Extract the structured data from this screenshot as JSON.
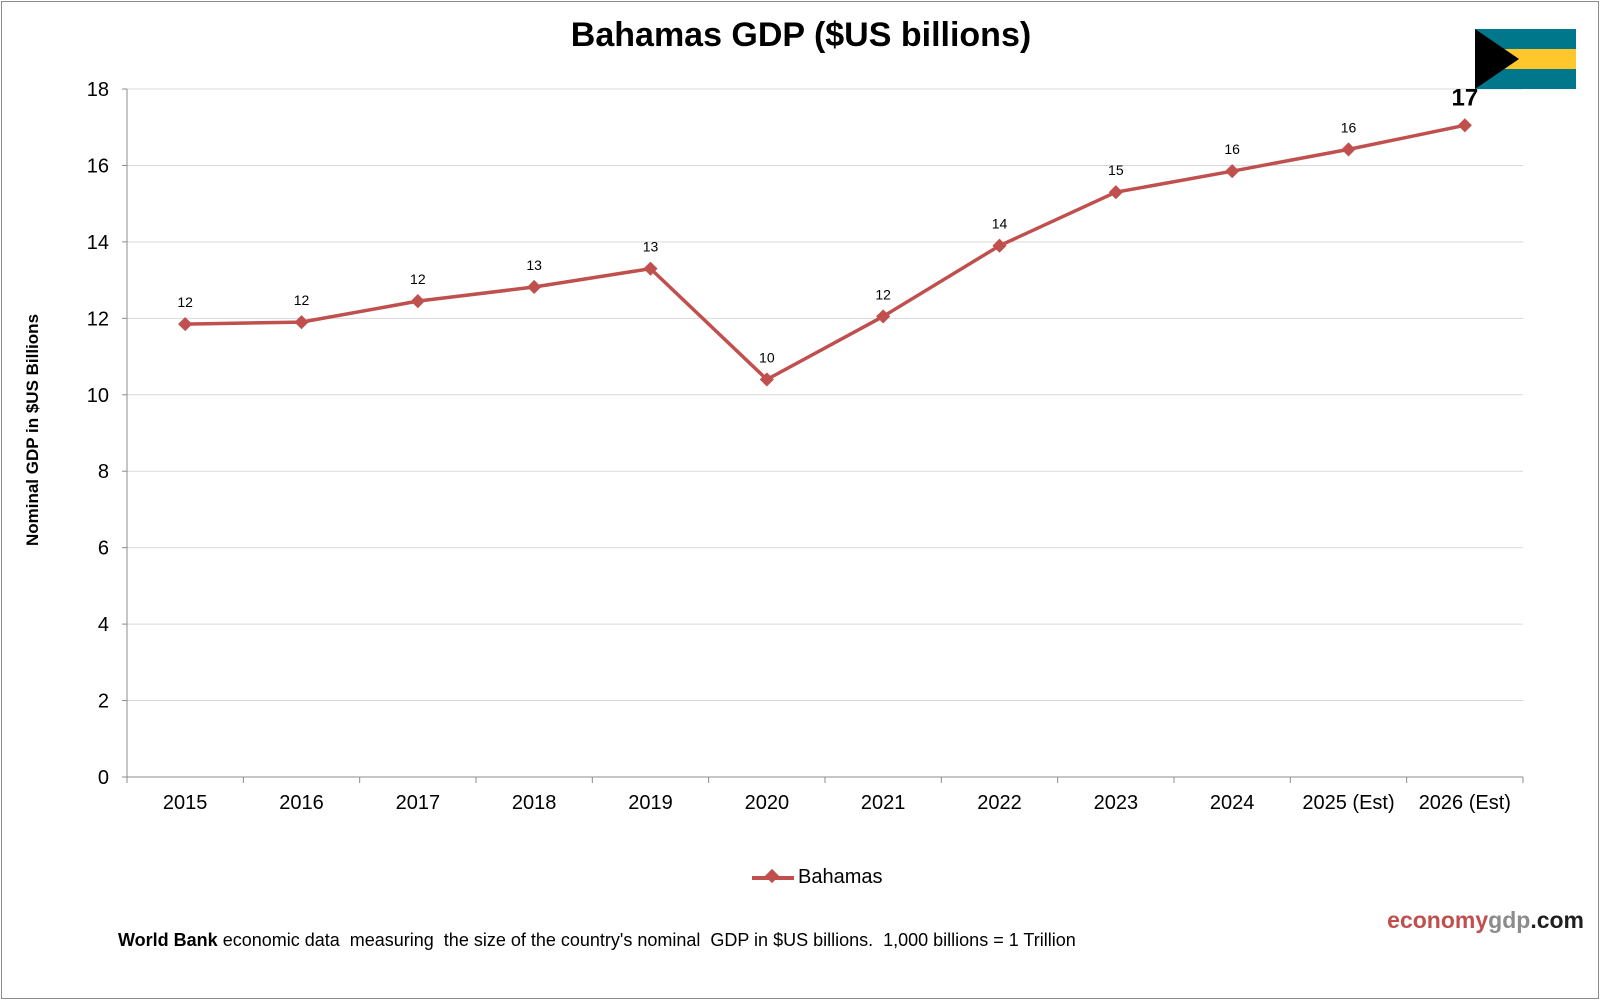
{
  "chart_data": {
    "type": "line",
    "title": "Bahamas GDP ($US billions)",
    "xlabel": "",
    "ylabel": "Nominal GDP in $US Billions",
    "categories": [
      "2015",
      "2016",
      "2017",
      "2018",
      "2019",
      "2020",
      "2021",
      "2022",
      "2023",
      "2024",
      "2025 (Est)",
      "2026 (Est)"
    ],
    "series": [
      {
        "name": "Bahamas",
        "values": [
          11.85,
          11.9,
          12.45,
          12.82,
          13.3,
          10.4,
          12.05,
          13.9,
          15.3,
          15.85,
          16.42,
          17.05
        ],
        "data_labels": [
          "12",
          "12",
          "12",
          "13",
          "13",
          "10",
          "12",
          "14",
          "15",
          "16",
          "16",
          "17"
        ],
        "color": "#c0504d"
      }
    ],
    "ylim": [
      0,
      18
    ],
    "yticks": [
      "0",
      "2",
      "4",
      "6",
      "8",
      "10",
      "12",
      "14",
      "16",
      "18"
    ],
    "grid": true,
    "legend": "bottom-center"
  },
  "footer": {
    "source_bold": "World Bank",
    "source_text": " economic data  measuring  the size of the country's nominal  GDP in $US billions.  1,000 billions = 1 Trillion",
    "brand_part1": "economy",
    "brand_part2": "gdp",
    "brand_part3": ".com"
  },
  "colors": {
    "series": "#c0504d",
    "grid": "#d9d9d9",
    "flag_aquamarine": "#00778b",
    "flag_gold": "#ffc72c",
    "flag_black": "#000000"
  },
  "icons": {
    "flag": "bahamas-flag-icon"
  }
}
